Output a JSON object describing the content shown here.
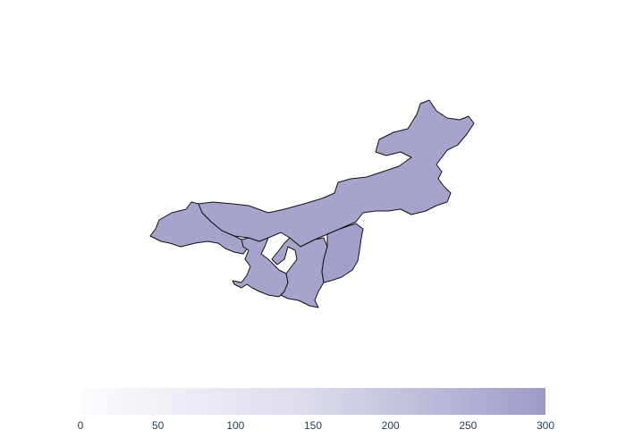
{
  "map": {
    "type": "choropleth",
    "regions": [
      {
        "id": "north-main",
        "value": 247,
        "color": "#a6a4cc"
      },
      {
        "id": "west",
        "value": 247,
        "color": "#a6a4cc"
      },
      {
        "id": "center-west",
        "value": 247,
        "color": "#a6a4cc"
      },
      {
        "id": "center",
        "value": 247,
        "color": "#a6a4cc"
      },
      {
        "id": "center-east",
        "value": 262,
        "color": "#a29fca"
      }
    ]
  },
  "colorbar": {
    "min": 0,
    "max": 300,
    "ticks": [
      "0",
      "50",
      "100",
      "150",
      "200",
      "250",
      "300"
    ],
    "color_low": "#fcfbfd",
    "color_high": "#9e9ac8"
  }
}
